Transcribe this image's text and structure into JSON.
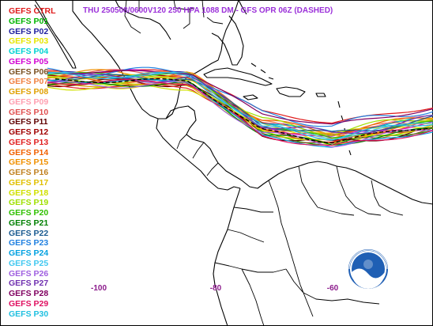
{
  "title": "THU 250508/0600V120  250 HPA 1088 DM - GFS OPR 06Z (DASHED)",
  "colors": {
    "title": "#9b30d9",
    "axis": "#8b1a8b",
    "coast": "#000000",
    "logo_blue": "#1f5fb4"
  },
  "legend": [
    {
      "label": "GEFS CTRL",
      "color": "#e01b1b"
    },
    {
      "label": "GEFS P01",
      "color": "#00b400"
    },
    {
      "label": "GEFS P02",
      "color": "#1e1e9e"
    },
    {
      "label": "GEFS P03",
      "color": "#e6e600"
    },
    {
      "label": "GEFS P04",
      "color": "#00d2d2"
    },
    {
      "label": "GEFS P05",
      "color": "#d200d2"
    },
    {
      "label": "GEFS P06",
      "color": "#7a5020"
    },
    {
      "label": "GEFS P07",
      "color": "#f08040"
    },
    {
      "label": "GEFS P08",
      "color": "#e0a000"
    },
    {
      "label": "GEFS P09",
      "color": "#ff9fb0"
    },
    {
      "label": "GEFS P10",
      "color": "#e05050"
    },
    {
      "label": "GEFS P11",
      "color": "#600000"
    },
    {
      "label": "GEFS P12",
      "color": "#a00000"
    },
    {
      "label": "GEFS P13",
      "color": "#e02020"
    },
    {
      "label": "GEFS P14",
      "color": "#f06000"
    },
    {
      "label": "GEFS P15",
      "color": "#f09000"
    },
    {
      "label": "GEFS P16",
      "color": "#c08020"
    },
    {
      "label": "GEFS P17",
      "color": "#e0c000"
    },
    {
      "label": "GEFS P18",
      "color": "#d0e000"
    },
    {
      "label": "GEFS P19",
      "color": "#a0e000"
    },
    {
      "label": "GEFS P20",
      "color": "#30c000"
    },
    {
      "label": "GEFS P21",
      "color": "#008000"
    },
    {
      "label": "GEFS P22",
      "color": "#1a5a90"
    },
    {
      "label": "GEFS P23",
      "color": "#2080e0"
    },
    {
      "label": "GEFS P24",
      "color": "#00a0e0"
    },
    {
      "label": "GEFS P25",
      "color": "#40c8f0"
    },
    {
      "label": "GEFS P26",
      "color": "#a060e0"
    },
    {
      "label": "GEFS P27",
      "color": "#7030b0"
    },
    {
      "label": "GEFS P28",
      "color": "#800060"
    },
    {
      "label": "GEFS P29",
      "color": "#e01060"
    },
    {
      "label": "GEFS P30",
      "color": "#20c0e0"
    }
  ],
  "lon_labels": [
    {
      "text": "-100",
      "lon": -100
    },
    {
      "text": "-80",
      "lon": -80
    },
    {
      "text": "-60",
      "lon": -60
    }
  ],
  "logo": {
    "text": "NOAA"
  }
}
